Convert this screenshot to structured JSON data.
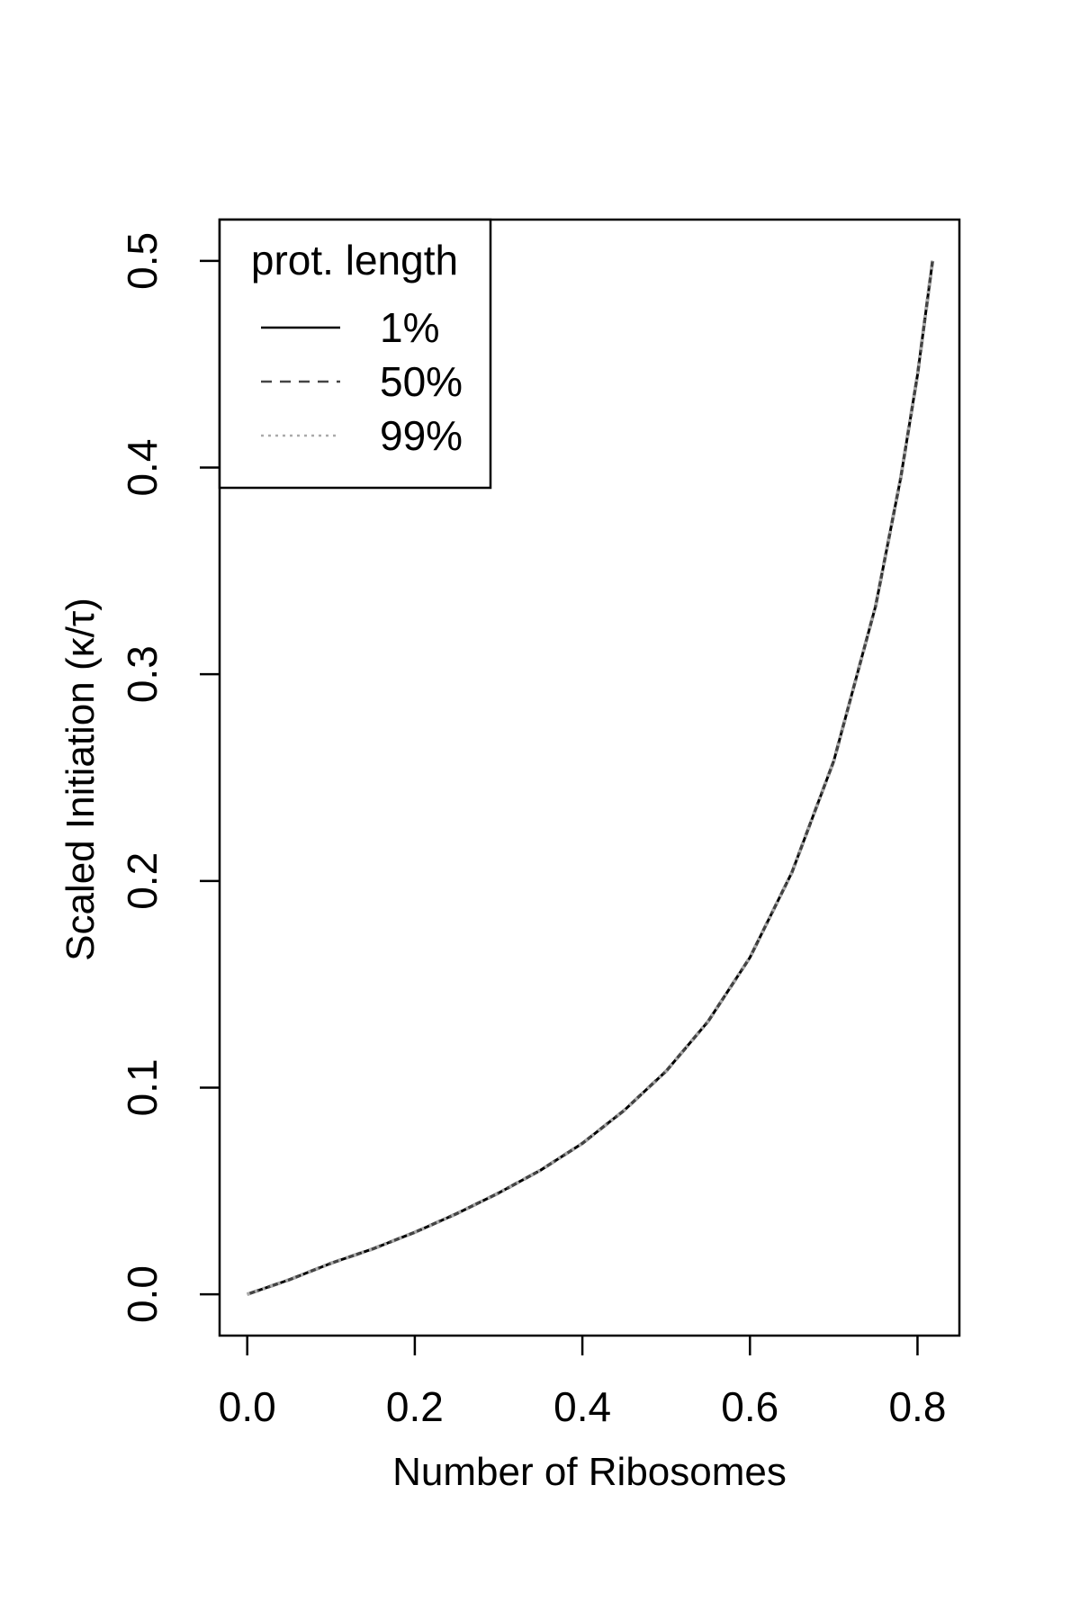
{
  "chart_data": {
    "type": "line",
    "xlabel": "Number of Ribosomes",
    "ylabel": "Scaled Initiation (κ/τ)",
    "xlim": [
      -0.033,
      0.85
    ],
    "ylim": [
      -0.02,
      0.52
    ],
    "x_ticks": [
      0.0,
      0.2,
      0.4,
      0.6,
      0.8
    ],
    "x_tick_labels": [
      "0.0",
      "0.2",
      "0.4",
      "0.6",
      "0.8"
    ],
    "y_ticks": [
      0.0,
      0.1,
      0.2,
      0.3,
      0.4,
      0.5
    ],
    "y_tick_labels": [
      "0.0",
      "0.1",
      "0.2",
      "0.3",
      "0.4",
      "0.5"
    ],
    "grid": false,
    "legend": {
      "title": "prot. length",
      "position": "top-left"
    },
    "series": [
      {
        "name": "1%",
        "line_style": "solid",
        "color": "#000000",
        "x": [
          0.0,
          0.05,
          0.1,
          0.15,
          0.2,
          0.25,
          0.3,
          0.35,
          0.4,
          0.45,
          0.5,
          0.55,
          0.6,
          0.65,
          0.7,
          0.75,
          0.78,
          0.8,
          0.818
        ],
        "y": [
          0.0,
          0.007,
          0.015,
          0.022,
          0.03,
          0.039,
          0.049,
          0.06,
          0.073,
          0.089,
          0.108,
          0.132,
          0.163,
          0.204,
          0.258,
          0.333,
          0.395,
          0.445,
          0.5
        ]
      },
      {
        "name": "50%",
        "line_style": "dashed",
        "color": "#444444",
        "x": [
          0.0,
          0.05,
          0.1,
          0.15,
          0.2,
          0.25,
          0.3,
          0.35,
          0.4,
          0.45,
          0.5,
          0.55,
          0.6,
          0.65,
          0.7,
          0.75,
          0.78,
          0.8,
          0.818
        ],
        "y": [
          0.0,
          0.007,
          0.015,
          0.022,
          0.03,
          0.039,
          0.049,
          0.06,
          0.073,
          0.089,
          0.108,
          0.132,
          0.163,
          0.204,
          0.258,
          0.333,
          0.395,
          0.445,
          0.5
        ]
      },
      {
        "name": "99%",
        "line_style": "dotted",
        "color": "#aaaaaa",
        "x": [
          0.0,
          0.05,
          0.1,
          0.15,
          0.2,
          0.25,
          0.3,
          0.35,
          0.4,
          0.45,
          0.5,
          0.55,
          0.6,
          0.65,
          0.7,
          0.75,
          0.78,
          0.8,
          0.818
        ],
        "y": [
          0.0,
          0.007,
          0.015,
          0.022,
          0.03,
          0.039,
          0.049,
          0.06,
          0.073,
          0.089,
          0.108,
          0.132,
          0.163,
          0.204,
          0.258,
          0.333,
          0.395,
          0.445,
          0.5
        ]
      }
    ]
  }
}
